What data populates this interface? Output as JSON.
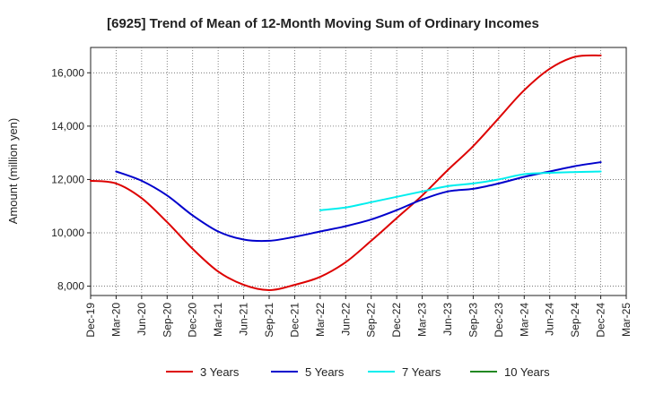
{
  "chart_data": {
    "type": "line",
    "title": "[6925]  Trend of Mean of 12-Month Moving Sum of Ordinary Incomes",
    "xlabel": "",
    "ylabel": "Amount (million yen)",
    "ylim": [
      7650,
      16950
    ],
    "yticks": [
      8000,
      10000,
      12000,
      14000,
      16000
    ],
    "ytick_labels": [
      "8,000",
      "10,000",
      "12,000",
      "14,000",
      "16,000"
    ],
    "categories": [
      "Dec-19",
      "Mar-20",
      "Jun-20",
      "Sep-20",
      "Dec-20",
      "Mar-21",
      "Jun-21",
      "Sep-21",
      "Dec-21",
      "Mar-22",
      "Jun-22",
      "Sep-22",
      "Dec-22",
      "Mar-23",
      "Jun-23",
      "Sep-23",
      "Dec-23",
      "Mar-24",
      "Jun-24",
      "Sep-24",
      "Dec-24",
      "Mar-25"
    ],
    "grid": true,
    "legend_position": "bottom",
    "series": [
      {
        "name": "3 Years",
        "color": "#dd0000",
        "values": [
          11950,
          11850,
          11300,
          10400,
          9400,
          8550,
          8050,
          7850,
          8050,
          8350,
          8900,
          9700,
          10550,
          11400,
          12350,
          13250,
          14300,
          15350,
          16150,
          16600,
          16650,
          null
        ]
      },
      {
        "name": "5 Years",
        "color": "#0000cc",
        "values": [
          null,
          12300,
          11950,
          11400,
          10650,
          10050,
          9750,
          9700,
          9850,
          10050,
          10250,
          10500,
          10850,
          11250,
          11550,
          11650,
          11850,
          12100,
          12300,
          12500,
          12650,
          null
        ]
      },
      {
        "name": "7 Years",
        "color": "#00eeee",
        "values": [
          null,
          null,
          null,
          null,
          null,
          null,
          null,
          null,
          null,
          10850,
          10950,
          11150,
          11350,
          11550,
          11750,
          11850,
          12000,
          12200,
          12250,
          12280,
          12300,
          null
        ]
      },
      {
        "name": "10 Years",
        "color": "#228822",
        "values": [
          null,
          null,
          null,
          null,
          null,
          null,
          null,
          null,
          null,
          null,
          null,
          null,
          null,
          null,
          null,
          null,
          null,
          null,
          null,
          null,
          null,
          null
        ]
      }
    ]
  }
}
